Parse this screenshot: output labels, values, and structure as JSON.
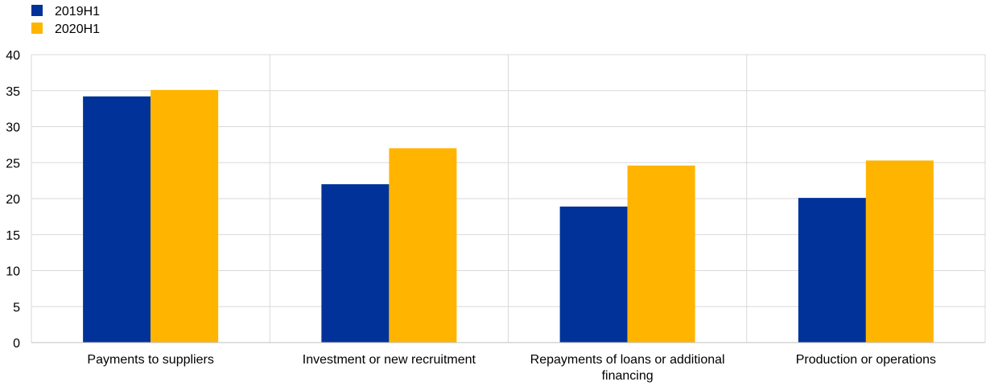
{
  "chart_data": {
    "type": "bar",
    "categories": [
      [
        "Payments to suppliers"
      ],
      [
        "Investment or new recruitment"
      ],
      [
        "Repayments of loans or additional",
        "financing"
      ],
      [
        "Production or operations"
      ]
    ],
    "series": [
      {
        "name": "2019H1",
        "color": "#003299",
        "values": [
          34.2,
          22.0,
          18.9,
          20.1
        ]
      },
      {
        "name": "2020H1",
        "color": "#FFB400",
        "values": [
          35.1,
          27.0,
          24.6,
          25.3
        ]
      }
    ],
    "ylim": [
      0,
      40
    ],
    "yticks": [
      0,
      5,
      10,
      15,
      20,
      25,
      30,
      35,
      40
    ],
    "grid": true,
    "legend": "top-left"
  }
}
